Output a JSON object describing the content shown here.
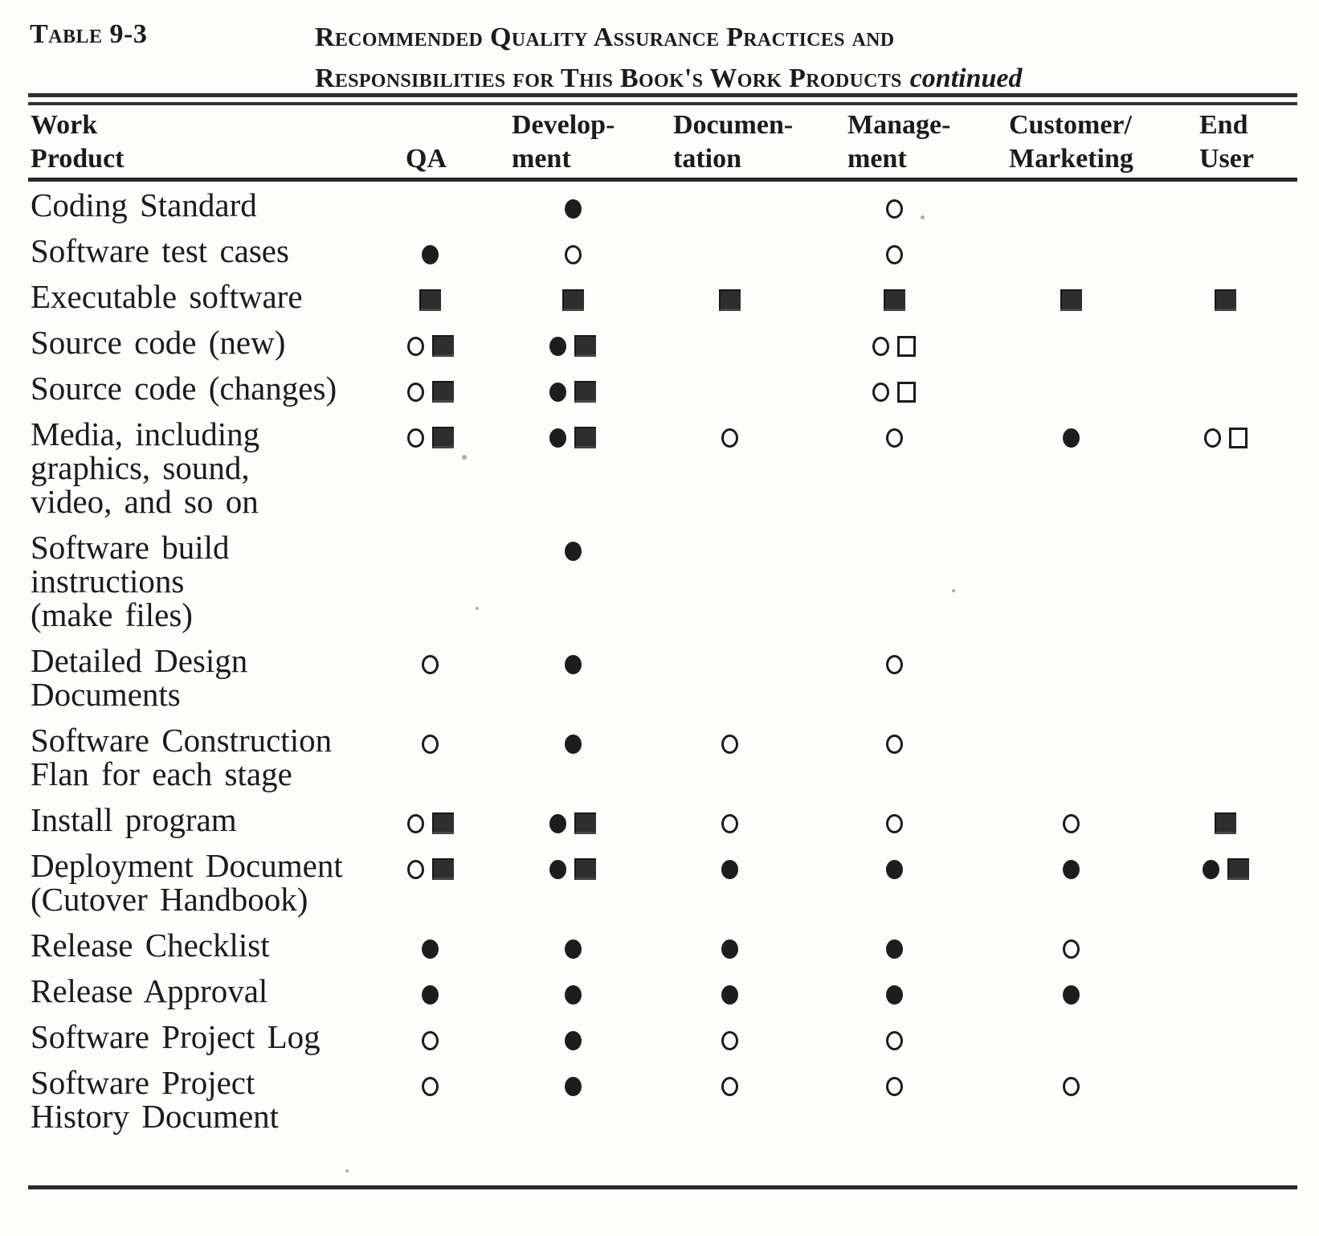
{
  "page": {
    "table_label": "Table 9-3",
    "title_line1": "Recommended Quality Assurance Practices and",
    "title_line2": "Responsibilities for This Book's Work Products",
    "title_continued": "continued"
  },
  "symbols": {
    "filled-circle": "●",
    "open-circle": "○",
    "filled-square": "■",
    "open-square": "□"
  },
  "table": {
    "columns": [
      {
        "id": "work_product",
        "line1": "Work",
        "line2": "Product"
      },
      {
        "id": "qa",
        "line1": "",
        "line2": "QA"
      },
      {
        "id": "development",
        "line1": "Develop-",
        "line2": "ment"
      },
      {
        "id": "documentation",
        "line1": "Documen-",
        "line2": "tation"
      },
      {
        "id": "management",
        "line1": "Manage-",
        "line2": "ment"
      },
      {
        "id": "customer_marketing",
        "line1": "Customer/",
        "line2": "Marketing"
      },
      {
        "id": "end_user",
        "line1": "End",
        "line2": "User"
      }
    ],
    "rows": [
      {
        "label_lines": [
          "Coding Standard"
        ],
        "cells": {
          "qa": [],
          "development": [
            "filled-circle"
          ],
          "documentation": [],
          "management": [
            "open-circle"
          ],
          "customer_marketing": [],
          "end_user": []
        }
      },
      {
        "label_lines": [
          "Software test cases"
        ],
        "cells": {
          "qa": [
            "filled-circle"
          ],
          "development": [
            "open-circle"
          ],
          "documentation": [],
          "management": [
            "open-circle"
          ],
          "customer_marketing": [],
          "end_user": []
        }
      },
      {
        "label_lines": [
          "Executable software"
        ],
        "cells": {
          "qa": [
            "filled-square"
          ],
          "development": [
            "filled-square"
          ],
          "documentation": [
            "filled-square"
          ],
          "management": [
            "filled-square"
          ],
          "customer_marketing": [
            "filled-square"
          ],
          "end_user": [
            "filled-square"
          ]
        }
      },
      {
        "label_lines": [
          "Source code (new)"
        ],
        "cells": {
          "qa": [
            "open-circle",
            "filled-square"
          ],
          "development": [
            "filled-circle",
            "filled-square"
          ],
          "documentation": [],
          "management": [
            "open-circle",
            "open-square"
          ],
          "customer_marketing": [],
          "end_user": []
        }
      },
      {
        "label_lines": [
          "Source code (changes)"
        ],
        "cells": {
          "qa": [
            "open-circle",
            "filled-square"
          ],
          "development": [
            "filled-circle",
            "filled-square"
          ],
          "documentation": [],
          "management": [
            "open-circle",
            "open-square"
          ],
          "customer_marketing": [],
          "end_user": []
        }
      },
      {
        "label_lines": [
          "Media, including",
          "graphics, sound,",
          "video, and so on"
        ],
        "cells": {
          "qa": [
            "open-circle",
            "filled-square"
          ],
          "development": [
            "filled-circle",
            "filled-square"
          ],
          "documentation": [
            "open-circle"
          ],
          "management": [
            "open-circle"
          ],
          "customer_marketing": [
            "filled-circle"
          ],
          "end_user": [
            "open-circle",
            "open-square"
          ]
        }
      },
      {
        "label_lines": [
          "Software build",
          "instructions",
          "(make files)"
        ],
        "cells": {
          "qa": [],
          "development": [
            "filled-circle"
          ],
          "documentation": [],
          "management": [],
          "customer_marketing": [],
          "end_user": []
        }
      },
      {
        "label_lines": [
          "Detailed Design",
          "Documents"
        ],
        "cells": {
          "qa": [
            "open-circle"
          ],
          "development": [
            "filled-circle"
          ],
          "documentation": [],
          "management": [
            "open-circle"
          ],
          "customer_marketing": [],
          "end_user": []
        }
      },
      {
        "label_lines": [
          "Software Construction",
          "Flan for each stage"
        ],
        "cells": {
          "qa": [
            "open-circle"
          ],
          "development": [
            "filled-circle"
          ],
          "documentation": [
            "open-circle"
          ],
          "management": [
            "open-circle"
          ],
          "customer_marketing": [],
          "end_user": []
        }
      },
      {
        "label_lines": [
          "Install program"
        ],
        "cells": {
          "qa": [
            "open-circle",
            "filled-square"
          ],
          "development": [
            "filled-circle",
            "filled-square"
          ],
          "documentation": [
            "open-circle"
          ],
          "management": [
            "open-circle"
          ],
          "customer_marketing": [
            "open-circle"
          ],
          "end_user": [
            "filled-square"
          ]
        }
      },
      {
        "label_lines": [
          "Deployment Document",
          "(Cutover Handbook)"
        ],
        "cells": {
          "qa": [
            "open-circle",
            "filled-square"
          ],
          "development": [
            "filled-circle",
            "filled-square"
          ],
          "documentation": [
            "filled-circle"
          ],
          "management": [
            "filled-circle"
          ],
          "customer_marketing": [
            "filled-circle"
          ],
          "end_user": [
            "filled-circle",
            "filled-square"
          ]
        }
      },
      {
        "label_lines": [
          "Release Checklist"
        ],
        "cells": {
          "qa": [
            "filled-circle"
          ],
          "development": [
            "filled-circle"
          ],
          "documentation": [
            "filled-circle"
          ],
          "management": [
            "filled-circle"
          ],
          "customer_marketing": [
            "open-circle"
          ],
          "end_user": []
        }
      },
      {
        "label_lines": [
          "Release Approval"
        ],
        "cells": {
          "qa": [
            "filled-circle"
          ],
          "development": [
            "filled-circle"
          ],
          "documentation": [
            "filled-circle"
          ],
          "management": [
            "filled-circle"
          ],
          "customer_marketing": [
            "filled-circle"
          ],
          "end_user": []
        }
      },
      {
        "label_lines": [
          "Software Project Log"
        ],
        "cells": {
          "qa": [
            "open-circle"
          ],
          "development": [
            "filled-circle"
          ],
          "documentation": [
            "open-circle"
          ],
          "management": [
            "open-circle"
          ],
          "customer_marketing": [],
          "end_user": []
        }
      },
      {
        "label_lines": [
          "Software Project",
          "History Document"
        ],
        "cells": {
          "qa": [
            "open-circle"
          ],
          "development": [
            "filled-circle"
          ],
          "documentation": [
            "open-circle"
          ],
          "management": [
            "open-circle"
          ],
          "customer_marketing": [
            "open-circle"
          ],
          "end_user": []
        }
      }
    ]
  }
}
